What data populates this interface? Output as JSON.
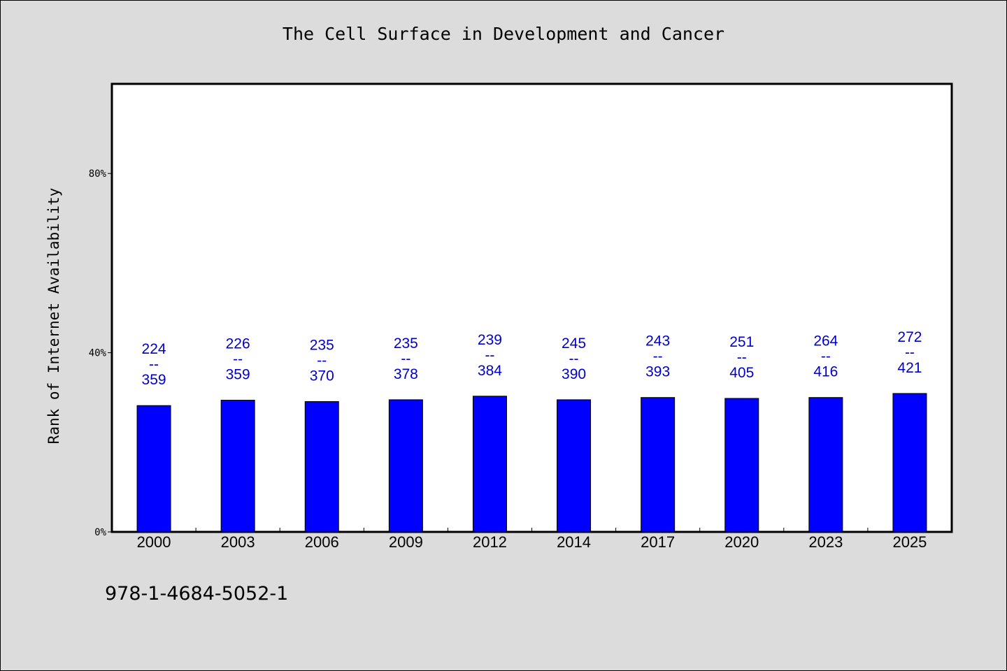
{
  "chart_data": {
    "type": "bar",
    "title": "The Cell Surface in Development and Cancer",
    "xlabel": "",
    "ylabel": "Rank of Internet Availability",
    "categories": [
      "2000",
      "2003",
      "2006",
      "2009",
      "2012",
      "2014",
      "2017",
      "2020",
      "2023",
      "2025"
    ],
    "values": [
      28.2,
      29.4,
      29.1,
      29.5,
      30.3,
      29.5,
      30.0,
      29.8,
      30.0,
      30.9
    ],
    "annotations": [
      {
        "top": "224",
        "sep": "--",
        "bottom": "359"
      },
      {
        "top": "226",
        "sep": "--",
        "bottom": "359"
      },
      {
        "top": "235",
        "sep": "--",
        "bottom": "370"
      },
      {
        "top": "235",
        "sep": "--",
        "bottom": "378"
      },
      {
        "top": "239",
        "sep": "--",
        "bottom": "384"
      },
      {
        "top": "245",
        "sep": "--",
        "bottom": "390"
      },
      {
        "top": "243",
        "sep": "--",
        "bottom": "393"
      },
      {
        "top": "251",
        "sep": "--",
        "bottom": "405"
      },
      {
        "top": "264",
        "sep": "--",
        "bottom": "416"
      },
      {
        "top": "272",
        "sep": "--",
        "bottom": "421"
      }
    ],
    "yticks": [
      0,
      40,
      80
    ],
    "ytick_labels": [
      "0%",
      "40%",
      "80%"
    ],
    "ylim": [
      0,
      100
    ],
    "grid": false,
    "bar_color": "#0000ff",
    "annotation_color": "#0000cc"
  },
  "footer": {
    "isbn": "978-1-4684-5052-1"
  }
}
